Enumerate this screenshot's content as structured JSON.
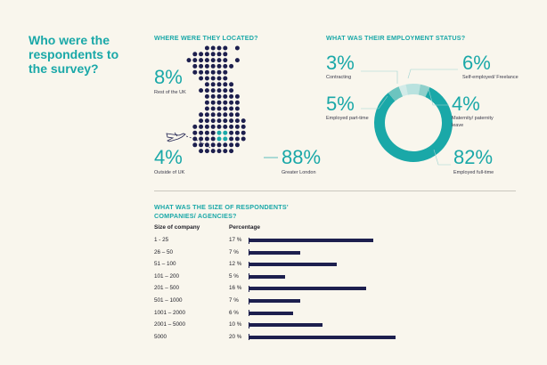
{
  "title": "Who were the respondents to the survey?",
  "location": {
    "heading": "WHERE WERE THEY LOCATED?",
    "rest_of_uk": {
      "pct": "8%",
      "label": "Rest of the UK"
    },
    "outside_uk": {
      "pct": "4%",
      "label": "Outside of UK"
    },
    "greater_london": {
      "pct": "88%",
      "label": "Greater London"
    }
  },
  "employment": {
    "heading": "WHAT WAS THEIR EMPLOYMENT STATUS?",
    "contracting": {
      "pct": "3%",
      "label": "Contracting"
    },
    "employed_part_time": {
      "pct": "5%",
      "label": "Employed part-time"
    },
    "self_employed": {
      "pct": "6%",
      "label": "Self-employed/ Freelance"
    },
    "maternity": {
      "pct": "4%",
      "label": "Maternity/ paternity leave"
    },
    "employed_full_time": {
      "pct": "82%",
      "label": "Employed full-time"
    }
  },
  "company_size": {
    "heading_line1": "WHAT WAS THE SIZE OF RESPONDENTS'",
    "heading_line2": "COMPANIES/ AGENCIES?",
    "col_size": "Size of company",
    "col_pct": "Percentage"
  },
  "colors": {
    "teal": "#1aa8a8",
    "navy": "#1d1f4e",
    "light_teal": "#b9e2df",
    "background": "#f9f6ed"
  },
  "chart_data": [
    {
      "type": "pie",
      "title": "WHERE WERE THEY LOCATED?",
      "categories": [
        "Rest of the UK",
        "Outside of UK",
        "Greater London"
      ],
      "values": [
        8,
        4,
        88
      ]
    },
    {
      "type": "pie",
      "title": "WHAT WAS THEIR EMPLOYMENT STATUS?",
      "categories": [
        "Contracting",
        "Self-employed/ Freelance",
        "Employed part-time",
        "Maternity/ paternity leave",
        "Employed full-time"
      ],
      "values": [
        3,
        6,
        5,
        4,
        82
      ]
    },
    {
      "type": "bar",
      "title": "WHAT WAS THE SIZE OF RESPONDENTS' COMPANIES/ AGENCIES?",
      "xlabel": "Size of company",
      "ylabel": "Percentage",
      "categories": [
        "1 - 25",
        "26 – 50",
        "51 – 100",
        "101 – 200",
        "201 – 500",
        "501 – 1000",
        "1001 – 2000",
        "2001 – 5000",
        "5000"
      ],
      "values": [
        17,
        7,
        12,
        5,
        16,
        7,
        6,
        10,
        20
      ],
      "value_labels": [
        "17 %",
        "7 %",
        "12 %",
        "5 %",
        "16 %",
        "7 %",
        "6 %",
        "10 %",
        "20 %"
      ],
      "ylim": [
        0,
        20
      ]
    }
  ]
}
